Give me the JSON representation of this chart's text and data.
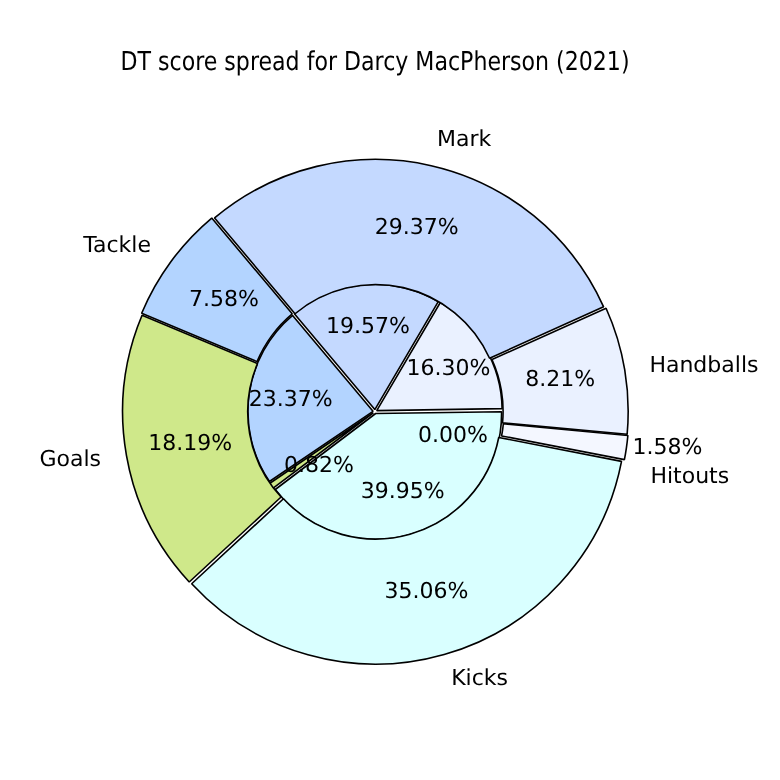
{
  "chart_data": {
    "type": "pie",
    "title": "DT score spread for Darcy MacPherson (2021)",
    "categories": [
      "Mark",
      "Handballs",
      "Hitouts",
      "Kicks",
      "Goals",
      "Tackle"
    ],
    "colors": [
      "#c4d9ff",
      "#eaf1ff",
      "#f4f7ff",
      "#d9ffff",
      "#cfe88a",
      "#b3d4ff"
    ],
    "series": [
      {
        "values": [
          29.37,
          8.21,
          1.58,
          35.06,
          18.19,
          7.58
        ],
        "value_labels": [
          "29.37%",
          "8.21%",
          "1.58%",
          "35.06%",
          "18.19%",
          "7.58%"
        ]
      },
      {
        "values": [
          19.57,
          16.3,
          0.0,
          39.95,
          0.82,
          23.37
        ],
        "value_labels": [
          "19.57%",
          "16.30%",
          "0.00%",
          "39.95%",
          "0.82%",
          "23.37%"
        ]
      }
    ],
    "legend": false
  }
}
